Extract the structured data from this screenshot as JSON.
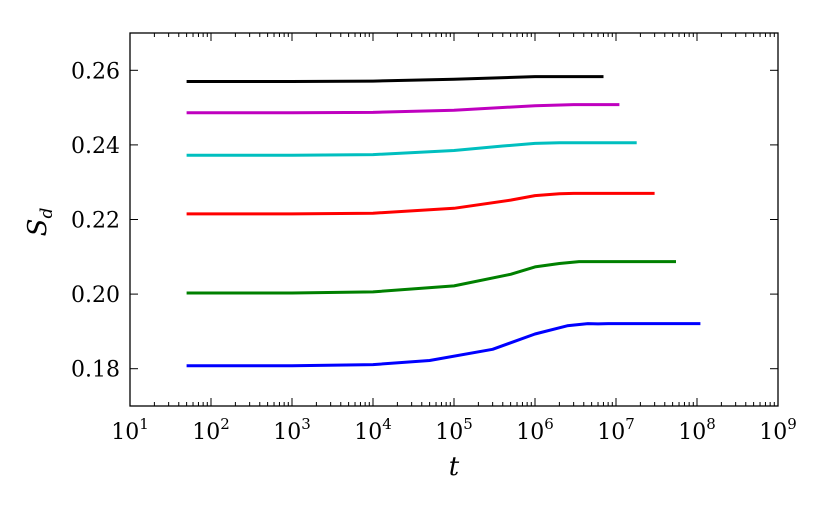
{
  "chart_data": {
    "type": "line",
    "title": "",
    "xlabel": "t",
    "ylabel": "S",
    "ylabel_subscript": "d",
    "x_scale": "log",
    "xlim": [
      10,
      1000000000
    ],
    "ylim": [
      0.17,
      0.27
    ],
    "x_ticks": [
      {
        "base": "10",
        "exp": "1",
        "value": 10
      },
      {
        "base": "10",
        "exp": "2",
        "value": 100
      },
      {
        "base": "10",
        "exp": "3",
        "value": 1000
      },
      {
        "base": "10",
        "exp": "4",
        "value": 10000
      },
      {
        "base": "10",
        "exp": "5",
        "value": 100000
      },
      {
        "base": "10",
        "exp": "6",
        "value": 1000000
      },
      {
        "base": "10",
        "exp": "7",
        "value": 10000000
      },
      {
        "base": "10",
        "exp": "8",
        "value": 100000000
      },
      {
        "base": "10",
        "exp": "9",
        "value": 1000000000
      }
    ],
    "y_ticks": [
      {
        "label": "0.18",
        "value": 0.18
      },
      {
        "label": "0.20",
        "value": 0.2
      },
      {
        "label": "0.22",
        "value": 0.22
      },
      {
        "label": "0.24",
        "value": 0.24
      },
      {
        "label": "0.26",
        "value": 0.26
      }
    ],
    "grid": false,
    "legend": "none",
    "series": [
      {
        "color": "#000000",
        "x": [
          50,
          1000,
          10000,
          100000,
          1000000,
          7000000
        ],
        "y": [
          0.257,
          0.257,
          0.2571,
          0.2576,
          0.2583,
          0.2583
        ]
      },
      {
        "color": "#bf00bf",
        "x": [
          50,
          1000,
          10000,
          100000,
          1000000,
          3000000,
          11000000
        ],
        "y": [
          0.2486,
          0.2486,
          0.2487,
          0.2493,
          0.2505,
          0.2508,
          0.2508
        ]
      },
      {
        "color": "#00bfbf",
        "x": [
          50,
          1000,
          10000,
          100000,
          400000,
          1000000,
          2000000,
          18000000
        ],
        "y": [
          0.2372,
          0.2372,
          0.2374,
          0.2385,
          0.2397,
          0.2404,
          0.2406,
          0.2406
        ]
      },
      {
        "color": "#ff0000",
        "x": [
          50,
          1000,
          10000,
          100000,
          500000,
          1000000,
          2000000,
          3000000,
          30000000
        ],
        "y": [
          0.2215,
          0.2215,
          0.2217,
          0.223,
          0.2252,
          0.2264,
          0.2269,
          0.227,
          0.227
        ]
      },
      {
        "color": "#008000",
        "x": [
          50,
          1000,
          10000,
          100000,
          500000,
          1000000,
          2000000,
          3500000,
          55000000
        ],
        "y": [
          0.2003,
          0.2003,
          0.2006,
          0.2022,
          0.2053,
          0.2073,
          0.2082,
          0.2087,
          0.2087
        ]
      },
      {
        "color": "#0000ff",
        "x": [
          50,
          1000,
          10000,
          50000,
          300000,
          1000000,
          2500000,
          4500000,
          6000000,
          8000000,
          110000000
        ],
        "y": [
          0.1808,
          0.1808,
          0.1811,
          0.1822,
          0.1852,
          0.1893,
          0.1915,
          0.1921,
          0.192,
          0.1921,
          0.1921
        ]
      }
    ]
  }
}
